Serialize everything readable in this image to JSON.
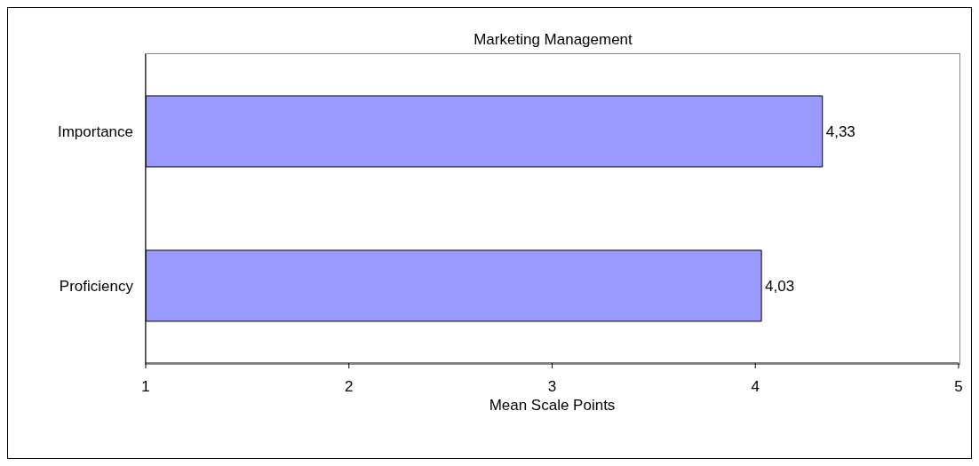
{
  "chart_data": {
    "type": "bar",
    "orientation": "horizontal",
    "title": "Marketing Management",
    "xlabel": "Mean Scale Points",
    "categories": [
      "Importance",
      "Proficiency"
    ],
    "values": [
      4.33,
      4.03
    ],
    "value_labels": [
      "4,33",
      "4,03"
    ],
    "color": "#9999ff",
    "xlim": [
      1,
      5
    ],
    "xticks": [
      1,
      2,
      3,
      4,
      5
    ],
    "grid": false,
    "legend": false
  }
}
